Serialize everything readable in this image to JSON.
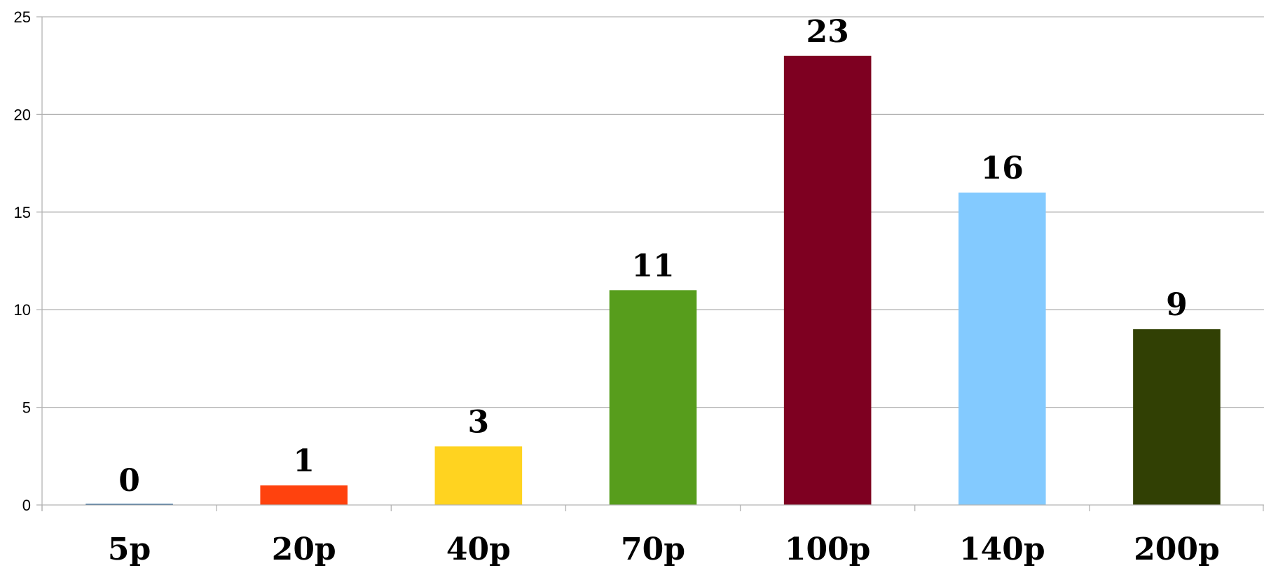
{
  "chart_data": {
    "type": "bar",
    "categories": [
      "5p",
      "20p",
      "40p",
      "70p",
      "100p",
      "140p",
      "200p"
    ],
    "values": [
      0,
      1,
      3,
      11,
      23,
      16,
      9
    ],
    "colors": [
      "#004586",
      "#ff420e",
      "#ffd320",
      "#579d1c",
      "#7e0021",
      "#83caff",
      "#314004"
    ],
    "title": "",
    "xlabel": "",
    "ylabel": "",
    "ylim": [
      0,
      25
    ],
    "yticks": [
      "0",
      "5",
      "10",
      "15",
      "20",
      "25"
    ],
    "grid": true,
    "legend": "none",
    "data_labels": true
  }
}
